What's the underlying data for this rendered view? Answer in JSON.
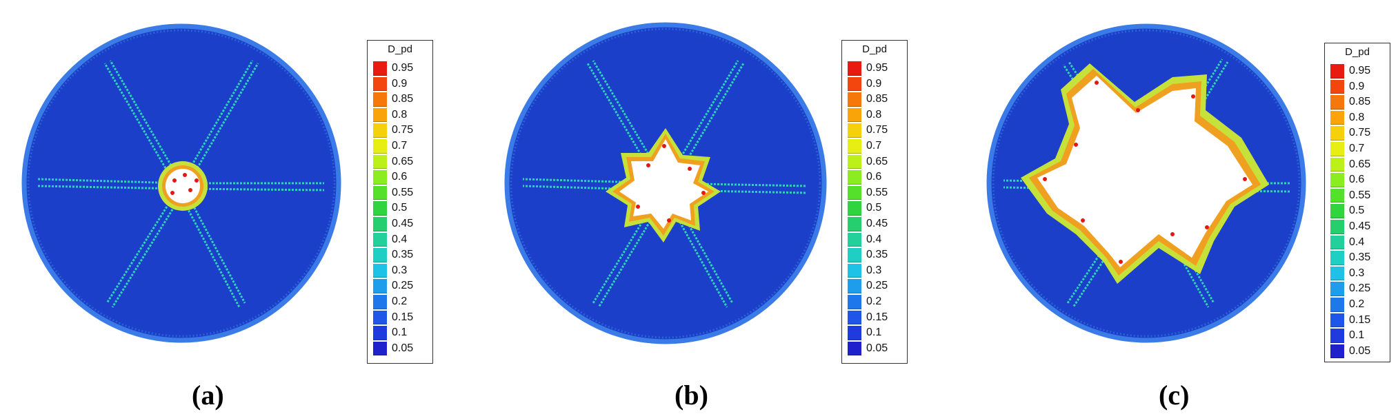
{
  "legend_title": "D_pd",
  "legend_labels": [
    "0.95",
    "0.9",
    "0.85",
    "0.8",
    "0.75",
    "0.7",
    "0.65",
    "0.6",
    "0.55",
    "0.5",
    "0.45",
    "0.4",
    "0.35",
    "0.3",
    "0.25",
    "0.2",
    "0.15",
    "0.1",
    "0.05"
  ],
  "legend_colors": [
    "#e81a12",
    "#f2460e",
    "#f7780a",
    "#f9a50a",
    "#f5d10c",
    "#e7ef12",
    "#bcf019",
    "#8cec22",
    "#55e12b",
    "#2fd43f",
    "#25cf6e",
    "#22d09b",
    "#20cfc4",
    "#1ec2e6",
    "#1e9ded",
    "#1f77ec",
    "#1f55e8",
    "#1f3be0",
    "#1f22cc"
  ],
  "panels": [
    {
      "caption": "(a)",
      "damage_radius": "small"
    },
    {
      "caption": "(b)",
      "damage_radius": "medium"
    },
    {
      "caption": "(c)",
      "damage_radius": "large"
    }
  ],
  "colors": {
    "disc": "#1b3fc8",
    "crack": "#2fd3b8",
    "rim": "#3a7be8"
  }
}
